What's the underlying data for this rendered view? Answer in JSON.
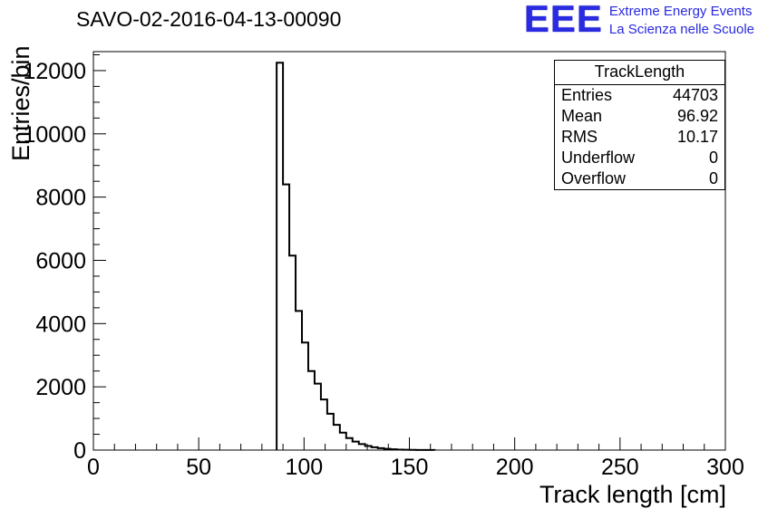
{
  "page": {
    "title": "SAVO-02-2016-04-13-00090"
  },
  "logo": {
    "eee": "EEE",
    "line1": "Extreme Energy Events",
    "line2": "La Scienza nelle Scuole",
    "color": "#2a2ae0"
  },
  "stats": {
    "title": "TrackLength",
    "rows": [
      {
        "label": "Entries",
        "value": "44703"
      },
      {
        "label": "Mean",
        "value": "96.92"
      },
      {
        "label": "RMS",
        "value": "10.17"
      },
      {
        "label": "Underflow",
        "value": "0"
      },
      {
        "label": "Overflow",
        "value": "0"
      }
    ]
  },
  "chart_data": {
    "type": "bar",
    "title": "SAVO-02-2016-04-13-00090",
    "xlabel": "Track length [cm]",
    "ylabel": "Entries/bin",
    "xlim": [
      0,
      300
    ],
    "ylim": [
      0,
      12600
    ],
    "x_ticks": [
      0,
      50,
      100,
      150,
      200,
      250,
      300
    ],
    "y_ticks": [
      0,
      2000,
      4000,
      6000,
      8000,
      10000,
      12000
    ],
    "x_minor_step": 10,
    "y_minor_step": 500,
    "grid": false,
    "legend": "none",
    "bin_start": 87,
    "bin_width": 3,
    "counts": [
      12250,
      8400,
      6150,
      4400,
      3400,
      2500,
      2100,
      1600,
      1150,
      800,
      550,
      380,
      270,
      190,
      130,
      90,
      60,
      40,
      25,
      15,
      10,
      8,
      5,
      3,
      2
    ],
    "entries": 44703,
    "mean": 96.92,
    "rms": 10.17,
    "underflow": 0,
    "overflow": 0,
    "line_color": "#000000"
  }
}
